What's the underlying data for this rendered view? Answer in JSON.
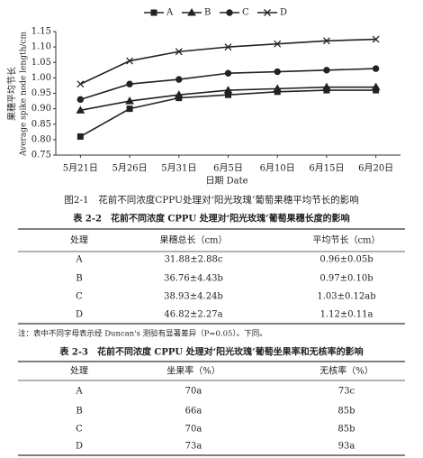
{
  "chart_data": {
    "type": "line",
    "categories": [
      "5月21日",
      "5月26日",
      "5月31日",
      "6月5日",
      "6月10日",
      "6月15日",
      "6月20日"
    ],
    "xlabel": "日期 Date",
    "ylabel": [
      "果穗平均节长",
      "Average spike node length/cm"
    ],
    "ylim": [
      0.75,
      1.15
    ],
    "yticks": [
      0.75,
      {
        "value": 0.8,
        "label": "0.80"
      },
      0.85,
      {
        "value": 0.9,
        "label": "0.90"
      },
      0.95,
      {
        "value": 1.0,
        "label": "1.00"
      },
      1.05,
      {
        "value": 1.1,
        "label": "1.10"
      },
      1.15
    ],
    "grid": false,
    "legend": "top",
    "series": [
      {
        "name": "A",
        "color": "#222222",
        "marker": "square",
        "values": [
          0.81,
          0.9,
          0.935,
          0.945,
          0.955,
          0.96,
          0.96
        ]
      },
      {
        "name": "B",
        "color": "#222222",
        "marker": "triangle",
        "values": [
          0.895,
          0.925,
          0.945,
          0.96,
          0.965,
          0.97,
          0.97
        ]
      },
      {
        "name": "C",
        "color": "#222222",
        "marker": "circle",
        "values": [
          0.93,
          0.98,
          0.995,
          1.015,
          1.02,
          1.025,
          1.03
        ]
      },
      {
        "name": "D",
        "color": "#222222",
        "marker": "cross",
        "values": [
          0.98,
          1.055,
          1.085,
          1.1,
          1.11,
          1.12,
          1.125
        ]
      }
    ]
  },
  "figure_caption": "图2-1　花前不同浓度CPPU处理对‘阳光玫瑰’葡萄果穗平均节长的影响",
  "table_2_2": {
    "title": "表 2-2　花前不同浓度 CPPU 处理对‘阳光玫瑰’葡萄果穗长度的影响",
    "header": [
      "处理",
      "果穗总长（cm）",
      "平均节长（cm）"
    ],
    "rows": [
      [
        "A",
        "31.88±2.88c",
        "0.96±0.05b"
      ],
      [
        "B",
        "36.76±4.43b",
        "0.97±0.10b"
      ],
      [
        "C",
        "38.93±4.24b",
        "1.03±0.12ab"
      ],
      [
        "D",
        "46.82±2.27a",
        "1.12±0.11a"
      ]
    ]
  },
  "note": "注：表中不同字母表示经 Duncan's 测验有显著差异（P=0.05）。下同。",
  "table_2_3": {
    "title": "表 2-3　花前不同浓度 CPPU 处理对‘阳光玫瑰’葡萄坐果率和无核率的影响",
    "header": [
      "处理",
      "坐果率（%）",
      "无核率（%）"
    ],
    "rows": [
      [
        "A",
        "70a",
        "73c"
      ],
      [
        "B",
        "66a",
        "85b"
      ],
      [
        "C",
        "70a",
        "85b"
      ],
      [
        "D",
        "73a",
        "93a"
      ]
    ]
  }
}
